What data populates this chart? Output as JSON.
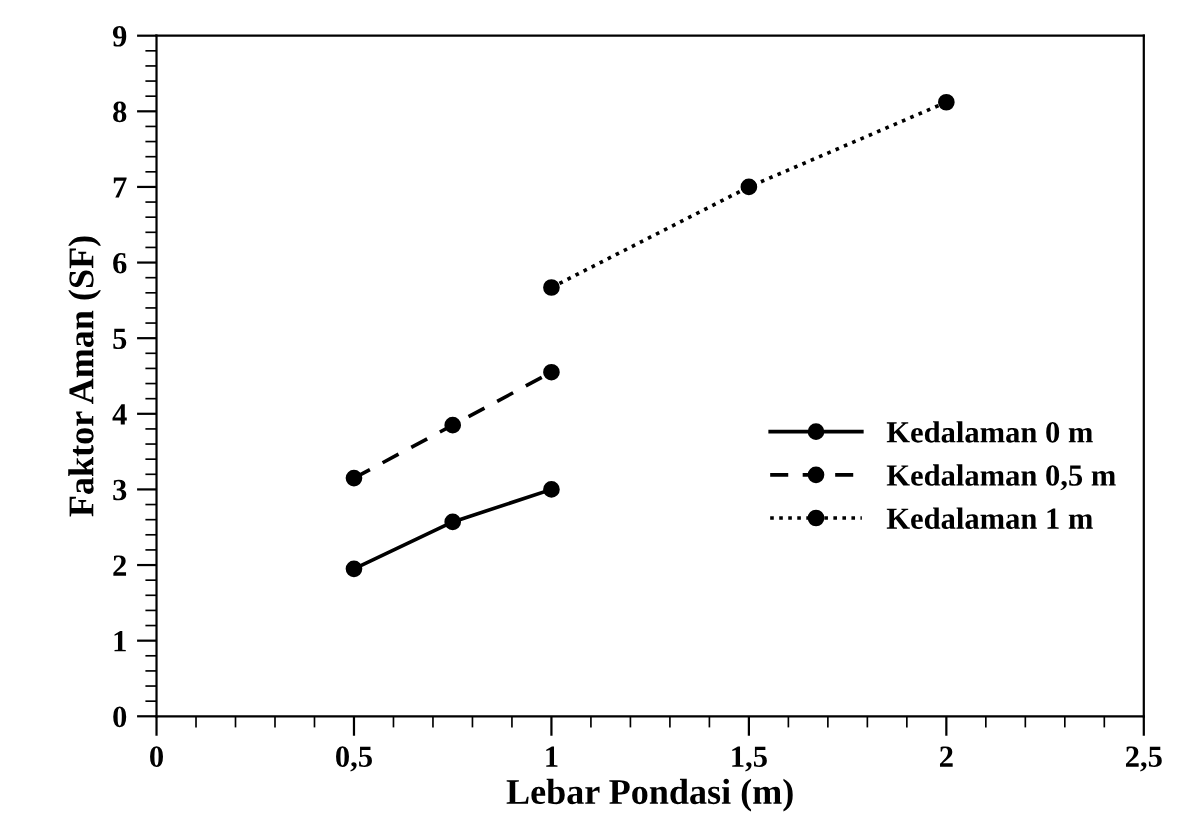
{
  "chart_data": {
    "type": "line",
    "xlabel": "Lebar Pondasi (m)",
    "ylabel": "Faktor Aman (SF)",
    "xlim": [
      0,
      2.5
    ],
    "xticks": [
      0,
      {
        "value": 0.5,
        "label": "0,5"
      },
      1,
      {
        "value": 1.5,
        "label": "1,5"
      },
      2,
      {
        "value": 2.5,
        "label": "2,5"
      }
    ],
    "ylim": [
      0,
      9
    ],
    "yticks": [
      0,
      1,
      2,
      3,
      4,
      5,
      6,
      7,
      8,
      9
    ],
    "series": [
      {
        "name": "Kedalaman 0 m",
        "color": "#000000",
        "x": [
          0.5,
          0.75,
          1
        ],
        "values": [
          1.95,
          2.57,
          3.0
        ],
        "line_style": "solid"
      },
      {
        "name": "Kedalaman 0,5 m",
        "color": "#000000",
        "x": [
          0.5,
          0.75,
          1
        ],
        "values": [
          3.15,
          3.85,
          4.55
        ],
        "line_style": "dashed"
      },
      {
        "name": "Kedalaman 1 m",
        "color": "#000000",
        "x": [
          1,
          1.5,
          2
        ],
        "values": [
          5.67,
          7.0,
          8.12
        ],
        "line_style": "dotted"
      }
    ],
    "marker": "circle",
    "grid": false,
    "legend": "right"
  }
}
